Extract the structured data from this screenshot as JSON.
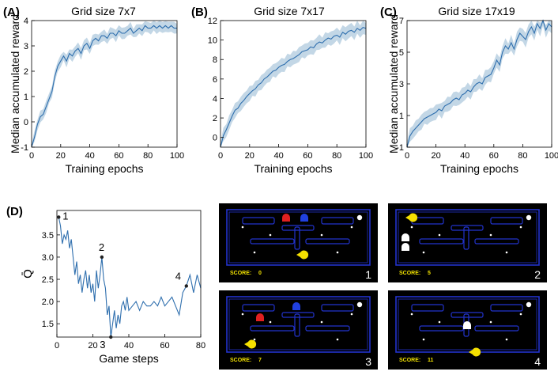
{
  "panels": {
    "a": {
      "letter": "(A)",
      "title": "Grid size 7x7"
    },
    "b": {
      "letter": "(B)",
      "title": "Grid size 7x17"
    },
    "c": {
      "letter": "(C)",
      "title": "Grid size 17x19"
    },
    "d": {
      "letter": "(D)"
    }
  },
  "colors": {
    "line": "#2f6fae",
    "band": "#b8d0e2",
    "axis": "#000000",
    "game_bg": "#000000",
    "wall": "#2233cc",
    "pacman": "#f5e000",
    "score": "#f0e000"
  },
  "chart_data": [
    {
      "type": "line",
      "title": "Grid size 7x7",
      "xlabel": "Training epochs",
      "ylabel": "Median accumulated reward",
      "xlim": [
        0,
        100
      ],
      "ylim": [
        -1,
        4
      ],
      "xticks": [
        0,
        20,
        40,
        60,
        80,
        100
      ],
      "yticks": [
        -1,
        0,
        1,
        2,
        3,
        4
      ],
      "x": [
        0,
        2,
        4,
        6,
        8,
        10,
        12,
        14,
        16,
        18,
        20,
        22,
        24,
        26,
        28,
        30,
        32,
        34,
        36,
        38,
        40,
        42,
        44,
        46,
        48,
        50,
        52,
        54,
        56,
        58,
        60,
        62,
        64,
        66,
        68,
        70,
        72,
        74,
        76,
        78,
        80,
        82,
        84,
        86,
        88,
        90,
        92,
        94,
        96,
        98,
        100
      ],
      "y": [
        -1.0,
        -0.6,
        -0.1,
        0.2,
        0.3,
        0.6,
        0.9,
        1.2,
        1.8,
        2.2,
        2.4,
        2.6,
        2.4,
        2.7,
        2.6,
        2.8,
        2.9,
        2.7,
        3.0,
        3.1,
        2.9,
        3.2,
        3.3,
        3.2,
        3.4,
        3.4,
        3.3,
        3.5,
        3.5,
        3.4,
        3.6,
        3.5,
        3.5,
        3.6,
        3.7,
        3.5,
        3.6,
        3.7,
        3.6,
        3.8,
        3.7,
        3.7,
        3.8,
        3.7,
        3.8,
        3.7,
        3.8,
        3.7,
        3.8,
        3.7,
        3.7
      ],
      "band": 0.25
    },
    {
      "type": "line",
      "title": "Grid size 7x17",
      "xlabel": "Training epochs",
      "ylabel": "",
      "xlim": [
        0,
        100
      ],
      "ylim": [
        -1,
        12
      ],
      "xticks": [
        0,
        20,
        40,
        60,
        80,
        100
      ],
      "yticks": [
        0,
        2,
        4,
        6,
        8,
        10,
        12
      ],
      "x": [
        0,
        2,
        4,
        6,
        8,
        10,
        12,
        14,
        16,
        18,
        20,
        22,
        24,
        26,
        28,
        30,
        32,
        34,
        36,
        38,
        40,
        42,
        44,
        46,
        48,
        50,
        52,
        54,
        56,
        58,
        60,
        62,
        64,
        66,
        68,
        70,
        72,
        74,
        76,
        78,
        80,
        82,
        84,
        86,
        88,
        90,
        92,
        94,
        96,
        98,
        100
      ],
      "y": [
        -1.0,
        0.2,
        0.8,
        1.5,
        2.2,
        2.8,
        3.0,
        3.5,
        3.8,
        4.2,
        4.5,
        4.8,
        5.0,
        5.4,
        5.6,
        6.0,
        6.2,
        6.5,
        6.8,
        6.9,
        7.2,
        7.4,
        7.5,
        7.8,
        8.0,
        8.1,
        8.3,
        8.5,
        8.8,
        8.9,
        9.0,
        9.3,
        9.2,
        9.6,
        9.8,
        9.7,
        10.0,
        10.2,
        10.1,
        10.4,
        10.5,
        10.3,
        10.8,
        10.6,
        10.9,
        11.0,
        10.8,
        11.2,
        11.0,
        11.3,
        11.2
      ],
      "band": 0.8
    },
    {
      "type": "line",
      "title": "Grid size 17x19",
      "xlabel": "Training epochs",
      "ylabel": "Median accumulated reward",
      "xlim": [
        0,
        100
      ],
      "ylim": [
        -1,
        7
      ],
      "xticks": [
        0,
        20,
        40,
        60,
        80,
        100
      ],
      "yticks": [
        -1,
        1,
        3,
        5,
        7
      ],
      "x": [
        0,
        2,
        4,
        6,
        8,
        10,
        12,
        14,
        16,
        18,
        20,
        22,
        24,
        26,
        28,
        30,
        32,
        34,
        36,
        38,
        40,
        42,
        44,
        46,
        48,
        50,
        52,
        54,
        56,
        58,
        60,
        62,
        64,
        66,
        68,
        70,
        72,
        74,
        76,
        78,
        80,
        82,
        84,
        86,
        88,
        90,
        92,
        94,
        96,
        98,
        100
      ],
      "y": [
        -1.0,
        -0.3,
        0.0,
        0.2,
        0.4,
        0.6,
        0.8,
        0.9,
        1.0,
        1.1,
        1.2,
        1.4,
        1.3,
        1.6,
        1.7,
        1.8,
        2.0,
        2.1,
        2.0,
        2.3,
        2.4,
        2.6,
        2.5,
        2.8,
        3.0,
        3.1,
        3.0,
        3.4,
        3.5,
        3.6,
        4.0,
        4.5,
        4.2,
        5.0,
        5.4,
        5.2,
        5.6,
        5.2,
        5.8,
        6.2,
        6.0,
        5.8,
        6.3,
        6.6,
        6.2,
        6.8,
        6.5,
        7.0,
        6.4,
        6.8,
        6.6
      ],
      "band": 0.5
    },
    {
      "type": "line",
      "title": "",
      "xlabel": "Game steps",
      "ylabel": "Q̄",
      "xlim": [
        0,
        80
      ],
      "ylim": [
        1.2,
        4.05
      ],
      "xticks": [
        0,
        20,
        40,
        60,
        80
      ],
      "yticks": [
        1.5,
        2.0,
        2.5,
        3.0,
        3.5
      ],
      "x": [
        1,
        2,
        3,
        4,
        5,
        6,
        7,
        8,
        9,
        10,
        11,
        12,
        13,
        14,
        15,
        16,
        17,
        18,
        19,
        20,
        21,
        22,
        23,
        24,
        25,
        26,
        27,
        28,
        29,
        30,
        31,
        32,
        33,
        34,
        35,
        36,
        37,
        38,
        39,
        40,
        42,
        44,
        46,
        48,
        50,
        52,
        54,
        56,
        58,
        60,
        62,
        64,
        66,
        68,
        70,
        72,
        74,
        76,
        78,
        80
      ],
      "y": [
        3.9,
        3.7,
        3.3,
        3.5,
        3.4,
        3.6,
        3.2,
        3.4,
        3.0,
        2.6,
        2.9,
        2.4,
        2.6,
        2.2,
        2.5,
        2.7,
        2.3,
        2.6,
        2.2,
        2.4,
        2.0,
        2.7,
        2.3,
        2.6,
        3.0,
        2.5,
        2.3,
        1.7,
        1.9,
        1.2,
        1.5,
        1.8,
        1.4,
        1.7,
        1.5,
        1.9,
        2.0,
        1.8,
        2.1,
        1.8,
        1.9,
        2.0,
        1.8,
        2.0,
        1.9,
        1.9,
        2.0,
        1.9,
        2.1,
        1.9,
        2.0,
        2.1,
        1.9,
        1.7,
        2.2,
        2.35,
        2.6,
        2.2,
        2.6,
        2.3
      ],
      "markers": [
        {
          "label": "1",
          "x": 1,
          "y": 3.9
        },
        {
          "label": "2",
          "x": 25,
          "y": 3.0
        },
        {
          "label": "3",
          "x": 30,
          "y": 1.2
        },
        {
          "label": "4",
          "x": 72,
          "y": 2.35
        }
      ]
    }
  ],
  "frames": [
    {
      "number": "1",
      "score_label": "SCORE:",
      "score_value": "0"
    },
    {
      "number": "2",
      "score_label": "SCORE:",
      "score_value": "5"
    },
    {
      "number": "3",
      "score_label": "SCORE:",
      "score_value": "7"
    },
    {
      "number": "4",
      "score_label": "SCORE:",
      "score_value": "11"
    }
  ]
}
